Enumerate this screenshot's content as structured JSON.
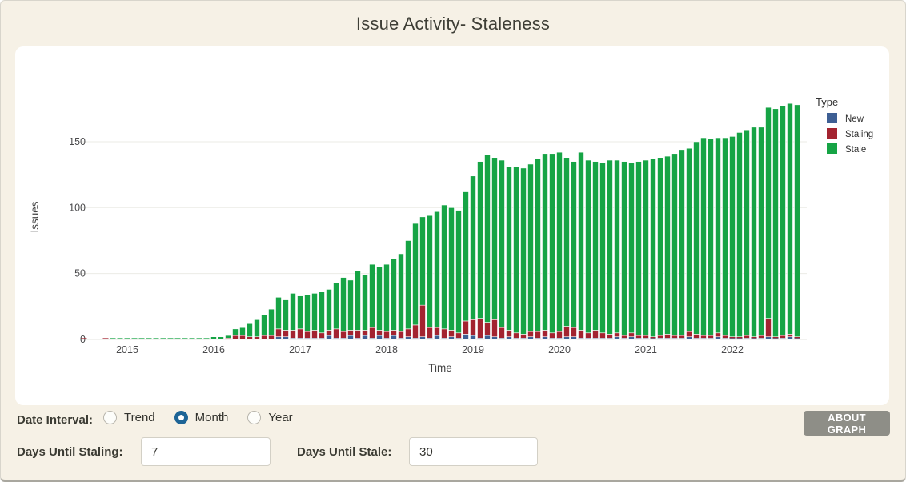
{
  "page": {
    "title": "Issue Activity- Staleness"
  },
  "controls": {
    "date_interval_label": "Date Interval:",
    "radios": [
      {
        "label": "Trend",
        "selected": false
      },
      {
        "label": "Month",
        "selected": true
      },
      {
        "label": "Year",
        "selected": false
      }
    ],
    "staling_label": "Days Until Staling:",
    "staling_value": "7",
    "stale_label": "Days Until Stale:",
    "stale_value": "30",
    "about_button_label": "ABOUT GRAPH"
  },
  "chart_data": {
    "type": "bar",
    "stacked": true,
    "title": "Issue Activity- Staleness",
    "xlabel": "Time",
    "ylabel": "Issues",
    "yticks": [
      0,
      50,
      100,
      150
    ],
    "ylim": [
      0,
      190
    ],
    "grid": true,
    "legend_position": "right",
    "legend": {
      "title": "Type",
      "entries": [
        {
          "label": "New",
          "color": "#3e5f94"
        },
        {
          "label": "Staling",
          "color": "#a32330"
        },
        {
          "label": "Stale",
          "color": "#16a445"
        }
      ]
    },
    "xticklabels": [
      "2015",
      "2016",
      "2017",
      "2018",
      "2019",
      "2020",
      "2021",
      "2022"
    ],
    "months": [
      "2014-07",
      "2014-08",
      "2014-09",
      "2014-10",
      "2014-11",
      "2014-12",
      "2015-01",
      "2015-02",
      "2015-03",
      "2015-04",
      "2015-05",
      "2015-06",
      "2015-07",
      "2015-08",
      "2015-09",
      "2015-10",
      "2015-11",
      "2015-12",
      "2016-01",
      "2016-02",
      "2016-03",
      "2016-04",
      "2016-05",
      "2016-06",
      "2016-07",
      "2016-08",
      "2016-09",
      "2016-10",
      "2016-11",
      "2016-12",
      "2017-01",
      "2017-02",
      "2017-03",
      "2017-04",
      "2017-05",
      "2017-06",
      "2017-07",
      "2017-08",
      "2017-09",
      "2017-10",
      "2017-11",
      "2017-12",
      "2018-01",
      "2018-02",
      "2018-03",
      "2018-04",
      "2018-05",
      "2018-06",
      "2018-07",
      "2018-08",
      "2018-09",
      "2018-10",
      "2018-11",
      "2018-12",
      "2019-01",
      "2019-02",
      "2019-03",
      "2019-04",
      "2019-05",
      "2019-06",
      "2019-07",
      "2019-08",
      "2019-09",
      "2019-10",
      "2019-11",
      "2019-12",
      "2020-01",
      "2020-02",
      "2020-03",
      "2020-04",
      "2020-05",
      "2020-06",
      "2020-07",
      "2020-08",
      "2020-09",
      "2020-10",
      "2020-11",
      "2020-12",
      "2021-01",
      "2021-02",
      "2021-03",
      "2021-04",
      "2021-05",
      "2021-06",
      "2021-07",
      "2021-08",
      "2021-09",
      "2021-10",
      "2021-11",
      "2021-12",
      "2022-01",
      "2022-02",
      "2022-03",
      "2022-04",
      "2022-05",
      "2022-06",
      "2022-07",
      "2022-08",
      "2022-09",
      "2022-10"
    ],
    "series": [
      {
        "name": "New",
        "color": "#3e5f94",
        "values": [
          0,
          0,
          0,
          0,
          0,
          0,
          0,
          0,
          0,
          0,
          0,
          0,
          0,
          0,
          0,
          0,
          0,
          0,
          0,
          0,
          0,
          0,
          0,
          0,
          0,
          0,
          0,
          2,
          2,
          1,
          1,
          1,
          1,
          1,
          3,
          1,
          1,
          3,
          1,
          3,
          1,
          3,
          1,
          3,
          1,
          2,
          1,
          2,
          1,
          3,
          1,
          2,
          1,
          4,
          3,
          1,
          3,
          2,
          1,
          2,
          1,
          1,
          2,
          1,
          2,
          1,
          1,
          2,
          2,
          1,
          1,
          1,
          1,
          1,
          2,
          1,
          2,
          1,
          1,
          1,
          1,
          1,
          1,
          1,
          2,
          1,
          1,
          1,
          2,
          1,
          1,
          1,
          1,
          1,
          1,
          2,
          1,
          1,
          2,
          1
        ]
      },
      {
        "name": "Staling",
        "color": "#a32330",
        "values": [
          1,
          0,
          0,
          1,
          0,
          0,
          0,
          0,
          0,
          0,
          0,
          0,
          0,
          0,
          0,
          0,
          0,
          0,
          0,
          0,
          1,
          3,
          3,
          2,
          2,
          3,
          3,
          6,
          5,
          6,
          7,
          5,
          6,
          4,
          4,
          7,
          5,
          4,
          6,
          4,
          8,
          4,
          5,
          4,
          5,
          6,
          10,
          24,
          8,
          6,
          7,
          5,
          4,
          10,
          12,
          15,
          10,
          13,
          8,
          5,
          4,
          3,
          4,
          5,
          5,
          4,
          5,
          8,
          7,
          6,
          4,
          6,
          4,
          3,
          3,
          2,
          3,
          2,
          2,
          1,
          2,
          3,
          2,
          2,
          4,
          3,
          2,
          2,
          3,
          2,
          1,
          1,
          2,
          1,
          2,
          14,
          1,
          2,
          2,
          1
        ]
      },
      {
        "name": "Stale",
        "color": "#16a445",
        "values": [
          0,
          0,
          0,
          0,
          1,
          1,
          1,
          1,
          1,
          1,
          1,
          1,
          1,
          1,
          1,
          1,
          1,
          1,
          2,
          2,
          2,
          5,
          6,
          10,
          13,
          16,
          20,
          24,
          23,
          28,
          25,
          28,
          28,
          31,
          31,
          35,
          41,
          38,
          45,
          42,
          48,
          48,
          51,
          54,
          59,
          67,
          77,
          67,
          85,
          88,
          94,
          93,
          93,
          98,
          109,
          119,
          127,
          123,
          127,
          124,
          126,
          126,
          127,
          131,
          134,
          136,
          136,
          128,
          126,
          135,
          131,
          128,
          129,
          132,
          131,
          132,
          129,
          132,
          133,
          135,
          135,
          135,
          138,
          141,
          139,
          146,
          150,
          149,
          148,
          150,
          152,
          155,
          156,
          159,
          158,
          160,
          173,
          174,
          175,
          176
        ]
      }
    ]
  }
}
